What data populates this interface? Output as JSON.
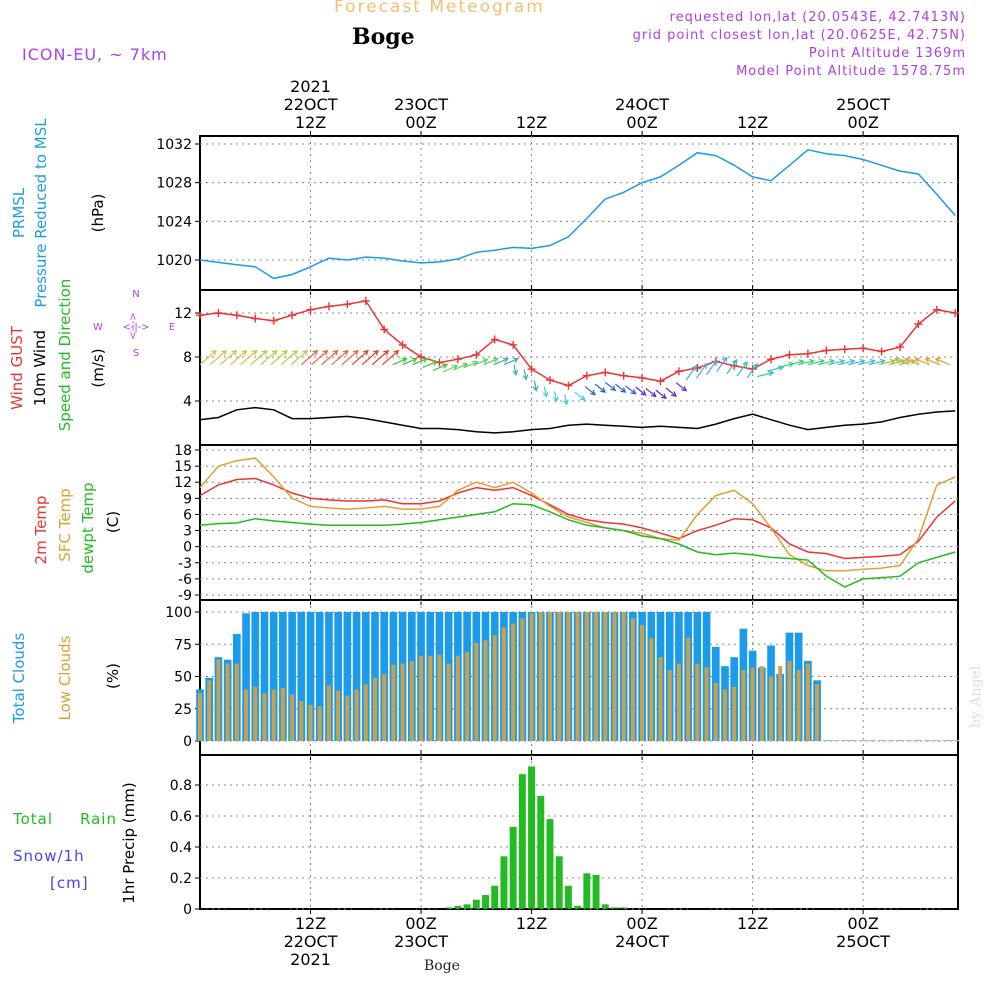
{
  "header": {
    "title": "Forecast Meteogram",
    "model": "ICON-EU, ~ 7km",
    "location": "Boge",
    "requested": "requested lon,lat (20.0543E, 42.7413N)",
    "closest": "grid point closest lon,lat (20.0625E, 42.75N)",
    "point_altitude": "Point Altitude 1369m",
    "model_altitude": "Model Point Altitude 1578.75m",
    "watermark": "by Angel",
    "footer_location": "Boge"
  },
  "colors": {
    "pressure": "#1c9bea",
    "gust": "#ee3333",
    "wind": "#000000",
    "t2m": "#ee3333",
    "tsfc": "#e0a030",
    "dewpt": "#22bb22",
    "total_clouds": "#1c9bea",
    "low_clouds": "#c8a050",
    "rain": "#22bb22",
    "snow": "#4444ee",
    "meta": "#b040e0",
    "title": "#f0c070"
  },
  "time_axis": {
    "top_year": "2021",
    "bottom_year": "2021",
    "ticks": [
      {
        "hour": 12,
        "top_date": "22OCT",
        "top_time": "12Z",
        "bottom_time": "12Z",
        "bottom_date": "22OCT"
      },
      {
        "hour": 24,
        "top_date": "23OCT",
        "top_time": "00Z",
        "bottom_time": "00Z",
        "bottom_date": "23OCT"
      },
      {
        "hour": 36,
        "top_date": "",
        "top_time": "12Z",
        "bottom_time": "12Z",
        "bottom_date": ""
      },
      {
        "hour": 48,
        "top_date": "24OCT",
        "top_time": "00Z",
        "bottom_time": "00Z",
        "bottom_date": "24OCT"
      },
      {
        "hour": 60,
        "top_date": "",
        "top_time": "12Z",
        "bottom_time": "12Z",
        "bottom_date": ""
      },
      {
        "hour": 72,
        "top_date": "25OCT",
        "top_time": "00Z",
        "bottom_time": "00Z",
        "bottom_date": "25OCT"
      }
    ]
  },
  "panels": {
    "pressure": {
      "label1": "PRMSL",
      "label2": "Pressure Reduced to MSL",
      "unit": "(hPa)"
    },
    "wind": {
      "label1": "Wind GUST",
      "label2": "10m Wind",
      "label3": "Speed and Direction",
      "unit": "(m/s)",
      "compass_n": "N",
      "compass_s": "S",
      "compass_w": "W",
      "compass_e": "E",
      "compass_v": "<--->",
      "compass_h": "<-|->"
    },
    "temp": {
      "label1": "2m Temp",
      "label2": "SFC Temp",
      "label3": "dewpt Temp",
      "unit": "(C)"
    },
    "clouds": {
      "label1": "Total Clouds",
      "label2": "Low Clouds",
      "unit": "(%)"
    },
    "precip": {
      "label1": "Total",
      "label1b": "Rain",
      "label2": "Snow/1h",
      "label3": "[cm]",
      "unit": "1hr Precip (mm)"
    }
  },
  "chart_data": [
    {
      "type": "line",
      "title": "PRMSL Pressure Reduced to MSL",
      "ylabel": "(hPa)",
      "ylim": [
        1017.5,
        1033
      ],
      "yticks": [
        "1020",
        "1024",
        "1028",
        "1032"
      ],
      "yticks_values": [
        1020,
        1024,
        1028,
        1032
      ],
      "x_hours": [
        0,
        4,
        6,
        8,
        10,
        12,
        14,
        16,
        18,
        20,
        22,
        24,
        26,
        28,
        30,
        32,
        34,
        36,
        38,
        40,
        42,
        44,
        46,
        48,
        50,
        52,
        54,
        56,
        58,
        60,
        62,
        64,
        66,
        68,
        70,
        72,
        74,
        76,
        78,
        80,
        82
      ],
      "series": [
        {
          "values": [
            1020.0,
            1019.5,
            1019.3,
            1018.1,
            1018.5,
            1019.3,
            1020.2,
            1020.0,
            1020.3,
            1020.2,
            1019.9,
            1019.7,
            1019.8,
            1020.1,
            1020.8,
            1021.0,
            1021.3,
            1021.2,
            1021.5,
            1022.4,
            1024.3,
            1026.3,
            1027.0,
            1028.0,
            1028.6,
            1029.8,
            1031.1,
            1030.8,
            1029.8,
            1028.6,
            1028.2,
            1029.8,
            1031.4,
            1031.0,
            1030.8,
            1030.4,
            1029.8,
            1029.2,
            1028.9,
            1026.8,
            1024.6
          ]
        }
      ]
    },
    {
      "type": "line",
      "title": "Wind GUST / 10m Wind Speed and Direction",
      "ylabel": "(m/s)",
      "ylim": [
        0,
        14.5
      ],
      "yticks": [
        "4",
        "8",
        "12"
      ],
      "yticks_values": [
        4,
        8,
        12
      ],
      "x_hours": [
        0,
        2,
        4,
        6,
        8,
        10,
        12,
        14,
        16,
        18,
        20,
        22,
        24,
        26,
        28,
        30,
        32,
        34,
        36,
        38,
        40,
        42,
        44,
        46,
        48,
        50,
        52,
        54,
        56,
        58,
        60,
        62,
        64,
        66,
        68,
        70,
        72,
        74,
        76,
        78,
        80,
        82
      ],
      "series": [
        {
          "name": "Wind GUST",
          "values": [
            11.8,
            12.0,
            11.8,
            11.5,
            11.3,
            11.8,
            12.3,
            12.6,
            12.8,
            13.1,
            10.5,
            9.1,
            8.0,
            7.5,
            7.8,
            8.2,
            9.6,
            9.1,
            6.9,
            5.9,
            5.4,
            6.3,
            6.6,
            6.3,
            6.1,
            5.8,
            6.7,
            7.0,
            7.6,
            7.2,
            6.9,
            7.8,
            8.2,
            8.3,
            8.6,
            8.7,
            8.8,
            8.5,
            8.9,
            11.0,
            12.3,
            12.0
          ]
        },
        {
          "name": "10m Wind",
          "values": [
            2.3,
            2.5,
            3.2,
            3.4,
            3.2,
            2.4,
            2.4,
            2.5,
            2.6,
            2.4,
            2.1,
            1.8,
            1.5,
            1.5,
            1.4,
            1.2,
            1.1,
            1.2,
            1.4,
            1.5,
            1.8,
            1.9,
            1.8,
            1.7,
            1.6,
            1.7,
            1.6,
            1.5,
            1.9,
            2.4,
            2.8,
            2.3,
            1.8,
            1.4,
            1.6,
            1.8,
            1.9,
            2.1,
            2.5,
            2.8,
            3.0,
            3.1
          ]
        }
      ]
    },
    {
      "type": "line",
      "title": "2m Temp / SFC Temp / dewpt Temp",
      "ylabel": "(C)",
      "ylim": [
        -9,
        18
      ],
      "yticks": [
        "-9",
        "-6",
        "-3",
        "0",
        "3",
        "6",
        "9",
        "12",
        "15",
        "18"
      ],
      "yticks_values": [
        -9,
        -6,
        -3,
        0,
        3,
        6,
        9,
        12,
        15,
        18
      ],
      "x_hours": [
        0,
        2,
        4,
        6,
        8,
        10,
        12,
        14,
        16,
        18,
        20,
        22,
        24,
        26,
        28,
        30,
        32,
        34,
        36,
        38,
        40,
        42,
        44,
        46,
        48,
        50,
        52,
        54,
        56,
        58,
        60,
        62,
        64,
        66,
        68,
        70,
        72,
        74,
        76,
        78,
        80,
        82
      ],
      "series": [
        {
          "name": "2m Temp",
          "values": [
            9.5,
            11.5,
            12.5,
            12.7,
            11.5,
            10.0,
            9.0,
            8.7,
            8.5,
            8.5,
            8.7,
            8.0,
            8.0,
            8.5,
            10.0,
            11.0,
            10.5,
            11.0,
            9.5,
            7.8,
            6.0,
            5.0,
            4.5,
            4.2,
            3.5,
            2.5,
            1.5,
            3.0,
            4.0,
            5.2,
            5.0,
            3.5,
            0.5,
            -1.0,
            -1.3,
            -2.2,
            -2.0,
            -1.8,
            -1.5,
            1.0,
            5.5,
            8.5
          ]
        },
        {
          "name": "SFC Temp",
          "values": [
            11.0,
            15.0,
            16.0,
            16.5,
            13.0,
            9.0,
            7.5,
            7.2,
            7.0,
            7.2,
            7.5,
            7.0,
            7.0,
            7.5,
            10.5,
            12.0,
            11.0,
            12.0,
            10.0,
            7.5,
            5.5,
            4.5,
            3.5,
            3.0,
            2.5,
            1.5,
            1.2,
            6.0,
            9.5,
            10.5,
            8.0,
            3.5,
            -1.5,
            -3.5,
            -4.5,
            -4.5,
            -4.2,
            -4.0,
            -3.5,
            1.5,
            11.5,
            13.0
          ]
        },
        {
          "name": "dewpt Temp",
          "values": [
            4.0,
            4.3,
            4.4,
            5.2,
            4.8,
            4.5,
            4.2,
            4.0,
            4.0,
            4.0,
            4.0,
            4.2,
            4.5,
            5.0,
            5.5,
            6.0,
            6.5,
            8.0,
            7.8,
            6.5,
            5.0,
            4.0,
            3.5,
            3.0,
            2.0,
            1.5,
            0.5,
            -1.0,
            -1.5,
            -1.2,
            -1.5,
            -2.0,
            -2.2,
            -2.5,
            -5.5,
            -7.5,
            -6.0,
            -5.8,
            -5.5,
            -3.0,
            -2.0,
            -1.0
          ]
        }
      ]
    },
    {
      "type": "bar",
      "title": "Total Clouds / Low Clouds",
      "ylabel": "(%)",
      "ylim": [
        0,
        100
      ],
      "yticks": [
        "0",
        "25",
        "50",
        "75",
        "100"
      ],
      "yticks_values": [
        0,
        25,
        50,
        75,
        100
      ],
      "x_hours": [
        0,
        1,
        2,
        3,
        4,
        5,
        6,
        7,
        8,
        9,
        10,
        11,
        12,
        13,
        14,
        15,
        16,
        17,
        18,
        19,
        20,
        21,
        22,
        23,
        24,
        25,
        26,
        27,
        28,
        29,
        30,
        31,
        32,
        33,
        34,
        35,
        36,
        37,
        38,
        39,
        40,
        41,
        42,
        43,
        44,
        45,
        46,
        47,
        48,
        49,
        50,
        51,
        52,
        53,
        54,
        55,
        56,
        57,
        58,
        59,
        60,
        61,
        62,
        63,
        64,
        65,
        66,
        67,
        68,
        69,
        70,
        71,
        72,
        73,
        74,
        75,
        76,
        77,
        78,
        79,
        80,
        81,
        82
      ],
      "series": [
        {
          "name": "Total Clouds",
          "values": [
            40,
            49,
            65,
            63,
            83,
            99,
            100,
            100,
            100,
            100,
            100,
            100,
            100,
            100,
            100,
            100,
            100,
            100,
            100,
            100,
            100,
            100,
            100,
            100,
            100,
            100,
            100,
            100,
            100,
            100,
            100,
            100,
            100,
            100,
            100,
            100,
            100,
            100,
            100,
            100,
            100,
            100,
            100,
            100,
            100,
            100,
            100,
            100,
            100,
            100,
            100,
            100,
            100,
            100,
            100,
            100,
            73,
            58,
            65,
            87,
            70,
            57,
            74,
            52,
            84,
            84,
            62,
            47,
            0,
            0,
            0,
            0,
            0,
            0,
            0,
            0,
            0,
            0,
            0,
            0,
            0,
            0,
            0
          ]
        },
        {
          "name": "Low Clouds",
          "values": [
            37,
            47,
            63,
            60,
            60,
            40,
            42,
            37,
            40,
            41,
            36,
            31,
            28,
            27,
            43,
            39,
            35,
            40,
            44,
            49,
            52,
            59,
            60,
            62,
            66,
            66,
            67,
            60,
            66,
            69,
            76,
            78,
            82,
            88,
            91,
            95,
            99,
            100,
            100,
            100,
            100,
            100,
            100,
            100,
            100,
            100,
            100,
            95,
            90,
            80,
            65,
            55,
            60,
            80,
            60,
            57,
            45,
            40,
            42,
            55,
            57,
            58,
            50,
            58,
            62,
            55,
            60,
            44,
            0,
            0,
            0,
            0,
            0,
            0,
            0,
            0,
            0,
            0,
            0,
            0,
            0,
            0,
            0
          ]
        }
      ]
    },
    {
      "type": "bar",
      "title": "Total Rain / Snow/1h [cm]",
      "ylabel": "1hr Precip (mm)",
      "ylim": [
        0,
        0.96
      ],
      "yticks": [
        "0",
        "0.2",
        "0.4",
        "0.6",
        "0.8"
      ],
      "yticks_values": [
        0,
        0.2,
        0.4,
        0.6,
        0.8
      ],
      "x_hours": [
        27,
        28,
        29,
        30,
        31,
        32,
        33,
        34,
        35,
        36,
        37,
        38,
        39,
        40,
        41,
        42,
        43,
        44,
        45,
        46
      ],
      "series": [
        {
          "name": "Total Rain",
          "values": [
            0.01,
            0.02,
            0.03,
            0.06,
            0.09,
            0.15,
            0.34,
            0.53,
            0.87,
            0.92,
            0.73,
            0.58,
            0.34,
            0.15,
            0.02,
            0.23,
            0.22,
            0.03,
            0.01,
            0.01
          ]
        }
      ]
    }
  ]
}
